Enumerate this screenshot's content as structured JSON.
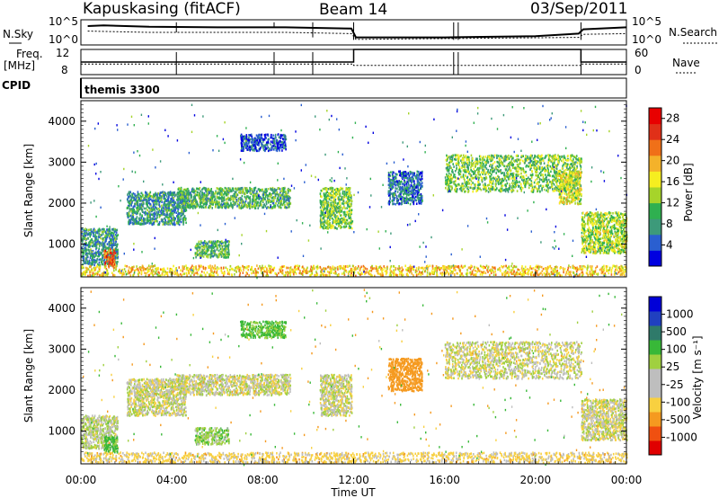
{
  "header": {
    "station": "Kapuskasing (fitACF)",
    "beam": "Beam 14",
    "date": "03/Sep/2011"
  },
  "strip_labels": {
    "nsky": "N.Sky",
    "freq_line1": "Freq.",
    "freq_line2": "[MHz]",
    "cpid": "CPID",
    "nsearch": "N.Search",
    "nave": "Nave"
  },
  "cpid_text": "themis 3300",
  "colors": {
    "power": [
      "#0000e0",
      "#2a5fd0",
      "#3d9a7a",
      "#2fb050",
      "#a6d42a",
      "#f6ee20",
      "#f4b22a",
      "#f07018",
      "#e03018",
      "#e80000"
    ],
    "velocity": [
      "#e00000",
      "#f05010",
      "#f59a20",
      "#f8d040",
      "#bebebe",
      "#bebebe",
      "#a0d040",
      "#38b838",
      "#2f7a6a",
      "#2040c0",
      "#0000d8"
    ]
  },
  "chart_data": [
    {
      "type": "line",
      "name": "noise-strip",
      "ylabel_left": "N.Sky",
      "ylabel_right": "N.Search",
      "left_ticks": [
        "10^5",
        "10^0"
      ],
      "right_ticks": [
        "10^5",
        "10^0"
      ],
      "x_range": [
        0,
        24
      ],
      "series": [
        {
          "values": [
            [
              0.3,
              0.75
            ],
            [
              1,
              0.78
            ],
            [
              3,
              0.72
            ],
            [
              6,
              0.7
            ],
            [
              9,
              0.7
            ],
            [
              11.9,
              0.65
            ],
            [
              12.1,
              0.3
            ],
            [
              16,
              0.3
            ],
            [
              20,
              0.35
            ],
            [
              21.9,
              0.45
            ],
            [
              22.1,
              0.62
            ],
            [
              24,
              0.7
            ]
          ]
        },
        {
          "values": [
            [
              0.3,
              0.55
            ],
            [
              3,
              0.5
            ],
            [
              9,
              0.5
            ],
            [
              11.9,
              0.45
            ],
            [
              12.1,
              0.22
            ],
            [
              21.9,
              0.3
            ],
            [
              22.1,
              0.42
            ],
            [
              24,
              0.45
            ]
          ]
        }
      ]
    },
    {
      "type": "line",
      "name": "frequency-strip",
      "ylabel_left": "Freq. [MHz]",
      "ylabel_right": "Nave",
      "left_ticks": [
        "12",
        "8"
      ],
      "right_ticks": [
        "60",
        "0"
      ],
      "x_range": [
        0,
        24
      ],
      "series": [
        {
          "values": [
            [
              0,
              10
            ],
            [
              12,
              10
            ],
            [
              12,
              12
            ],
            [
              22,
              12
            ],
            [
              22,
              10
            ],
            [
              24,
              10
            ]
          ]
        },
        {
          "values": [
            [
              0,
              25
            ],
            [
              12,
              25
            ],
            [
              12,
              22
            ],
            [
              22,
              22
            ],
            [
              22,
              25
            ],
            [
              24,
              25
            ]
          ]
        }
      ]
    },
    {
      "type": "heatmap",
      "name": "power-panel",
      "ylabel": "Slant Range [km]",
      "y_ticks": [
        "1000",
        "2000",
        "3000",
        "4000"
      ],
      "y_range": [
        200,
        4500
      ],
      "x_range": [
        0,
        24
      ],
      "colorbar_label": "Power [dB]",
      "colorbar_ticks": [
        "4",
        "8",
        "12",
        "16",
        "20",
        "24",
        "28"
      ],
      "colorbar_range": [
        0,
        30
      ],
      "regions": [
        {
          "t": [
            0.0,
            1.6
          ],
          "r": [
            500,
            1400
          ],
          "v": 8
        },
        {
          "t": [
            1.0,
            1.5
          ],
          "r": [
            500,
            900
          ],
          "v": 24
        },
        {
          "t": [
            2.0,
            4.6
          ],
          "r": [
            1500,
            2300
          ],
          "v": 8
        },
        {
          "t": [
            4.2,
            9.2
          ],
          "r": [
            1900,
            2400
          ],
          "v": 10
        },
        {
          "t": [
            5.0,
            6.5
          ],
          "r": [
            700,
            1100
          ],
          "v": 10
        },
        {
          "t": [
            7.0,
            9.0
          ],
          "r": [
            3300,
            3700
          ],
          "v": 4
        },
        {
          "t": [
            10.5,
            11.9
          ],
          "r": [
            1400,
            2400
          ],
          "v": 12
        },
        {
          "t": [
            13.5,
            15.0
          ],
          "r": [
            2000,
            2800
          ],
          "v": 6
        },
        {
          "t": [
            16.0,
            22.0
          ],
          "r": [
            2300,
            3200
          ],
          "v": 12
        },
        {
          "t": [
            21.0,
            22.0
          ],
          "r": [
            2000,
            2800
          ],
          "v": 16
        },
        {
          "t": [
            22.0,
            24.0
          ],
          "r": [
            800,
            1800
          ],
          "v": 14
        },
        {
          "t": [
            0.0,
            24.0
          ],
          "r": [
            250,
            500
          ],
          "v": 18
        }
      ]
    },
    {
      "type": "heatmap",
      "name": "velocity-panel",
      "ylabel": "Slant Range [km]",
      "y_ticks": [
        "1000",
        "2000",
        "3000",
        "4000"
      ],
      "y_range": [
        200,
        4500
      ],
      "x_range": [
        0,
        24
      ],
      "xlabel": "Time UT",
      "x_ticks": [
        "00:00",
        "04:00",
        "08:00",
        "12:00",
        "16:00",
        "20:00",
        "00:00"
      ],
      "colorbar_label": "Velocity [m s⁻¹]",
      "colorbar_ticks": [
        "1000",
        "500",
        "100",
        "25",
        "-25",
        "-100",
        "-500",
        "-1000"
      ],
      "regions": [
        {
          "t": [
            0.0,
            1.6
          ],
          "r": [
            600,
            1400
          ],
          "v": 20
        },
        {
          "t": [
            1.0,
            1.6
          ],
          "r": [
            500,
            900
          ],
          "v": 150
        },
        {
          "t": [
            2.0,
            4.6
          ],
          "r": [
            1400,
            2300
          ],
          "v": 0
        },
        {
          "t": [
            4.2,
            9.2
          ],
          "r": [
            1900,
            2400
          ],
          "v": 0
        },
        {
          "t": [
            5.0,
            6.5
          ],
          "r": [
            700,
            1100
          ],
          "v": 60
        },
        {
          "t": [
            7.0,
            9.0
          ],
          "r": [
            3300,
            3700
          ],
          "v": 120
        },
        {
          "t": [
            10.5,
            11.9
          ],
          "r": [
            1400,
            2400
          ],
          "v": 0
        },
        {
          "t": [
            13.5,
            15.0
          ],
          "r": [
            2000,
            2800
          ],
          "v": -200
        },
        {
          "t": [
            16.0,
            22.0
          ],
          "r": [
            2300,
            3200
          ],
          "v": 0
        },
        {
          "t": [
            22.0,
            24.0
          ],
          "r": [
            800,
            1800
          ],
          "v": 0
        },
        {
          "t": [
            0.0,
            24.0
          ],
          "r": [
            250,
            500
          ],
          "v": -50
        }
      ]
    }
  ]
}
